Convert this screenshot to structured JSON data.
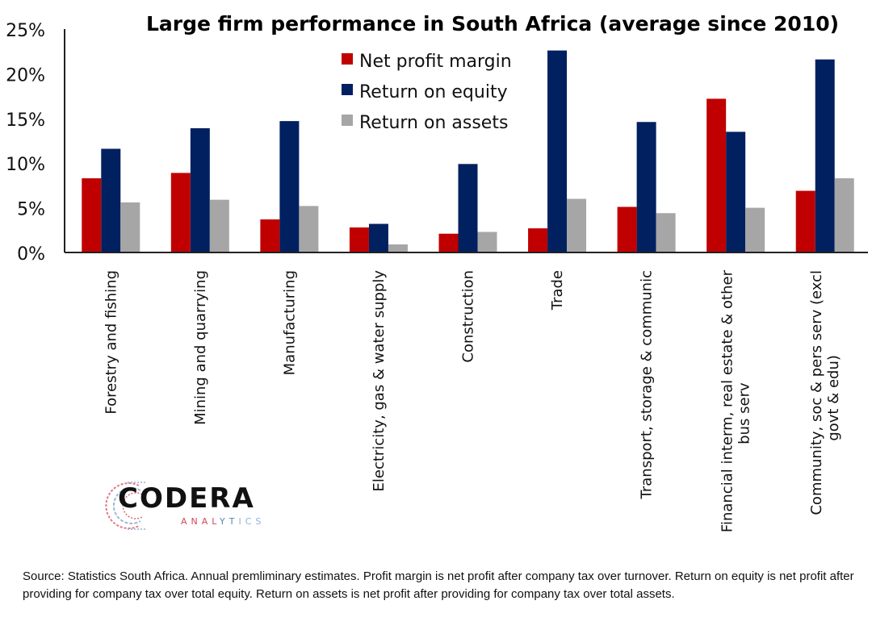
{
  "chart_data": {
    "type": "bar",
    "title": "Large firm performance in South Africa (average since 2010)",
    "xlabel": "",
    "ylabel": "",
    "ylim": [
      0,
      0.25
    ],
    "yticks": [
      0,
      0.05,
      0.1,
      0.15,
      0.2,
      0.25
    ],
    "ytick_labels": [
      "0%",
      "5%",
      "10%",
      "15%",
      "20%",
      "25%"
    ],
    "grid": false,
    "legend_position": "top-center",
    "categories": [
      [
        "Forestry and fishing"
      ],
      [
        "Mining and quarrying"
      ],
      [
        "Manufacturing"
      ],
      [
        "Electricity, gas & water supply"
      ],
      [
        "Construction"
      ],
      [
        "Trade"
      ],
      [
        "Transport, storage & communic"
      ],
      [
        "Financial interm, real estate & other",
        "bus serv"
      ],
      [
        "Community, soc & pers serv  (excl",
        "govt & edu)"
      ]
    ],
    "series": [
      {
        "name": "Net profit margin",
        "color": "#C00000",
        "values": [
          0.083,
          0.089,
          0.037,
          0.028,
          0.021,
          0.027,
          0.051,
          0.172,
          0.069
        ]
      },
      {
        "name": "Return on equity",
        "color": "#002060",
        "values": [
          0.116,
          0.139,
          0.147,
          0.032,
          0.099,
          0.226,
          0.146,
          0.135,
          0.216
        ]
      },
      {
        "name": "Return on assets",
        "color": "#A6A6A6",
        "values": [
          0.056,
          0.059,
          0.052,
          0.009,
          0.023,
          0.06,
          0.044,
          0.05,
          0.083
        ]
      }
    ]
  },
  "logo": {
    "name": "CODERA",
    "subtitle": "ANALYTICS"
  },
  "source_note": "Source: Statistics South Africa. Annual premliminary estimates. Profit margin is net profit after company tax over turnover. Return on equity is net profit after providing for company tax over total equity. Return on assets is net profit after providing for company tax over total assets."
}
